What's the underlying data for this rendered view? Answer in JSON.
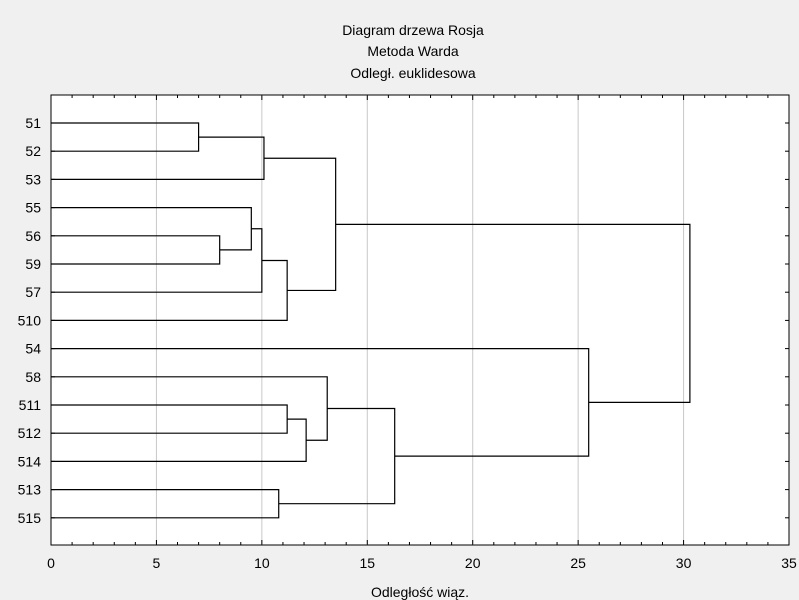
{
  "chart_data": {
    "type": "dendrogram",
    "title_lines": [
      "Diagram drzewa Rosja",
      "Metoda Warda",
      "Odległ. euklidesowa"
    ],
    "xlabel": "Odległość wiąz.",
    "xlim": [
      0,
      35
    ],
    "xticks": [
      0,
      5,
      10,
      15,
      20,
      25,
      30,
      35
    ],
    "grid": "vertical",
    "leaves": [
      "51",
      "52",
      "53",
      "55",
      "56",
      "59",
      "57",
      "510",
      "54",
      "58",
      "511",
      "512",
      "514",
      "513",
      "515"
    ],
    "merges": [
      {
        "a": "51",
        "b": "52",
        "height": 7.0
      },
      {
        "a": "C1",
        "b": "53",
        "height": 10.1
      },
      {
        "a": "56",
        "b": "59",
        "height": 8.0
      },
      {
        "a": "55",
        "b": "C3",
        "height": 9.5
      },
      {
        "a": "C4",
        "b": "57",
        "height": 10.0
      },
      {
        "a": "C5",
        "b": "510",
        "height": 11.2
      },
      {
        "a": "C2",
        "b": "C6",
        "height": 13.5
      },
      {
        "a": "511",
        "b": "512",
        "height": 11.2
      },
      {
        "a": "C8",
        "b": "514",
        "height": 12.1
      },
      {
        "a": "58",
        "b": "C9",
        "height": 13.1
      },
      {
        "a": "513",
        "b": "515",
        "height": 10.8
      },
      {
        "a": "C10",
        "b": "C11",
        "height": 16.3
      },
      {
        "a": "54",
        "b": "C12",
        "height": 25.5
      },
      {
        "a": "C7",
        "b": "C13",
        "height": 30.3
      }
    ]
  }
}
